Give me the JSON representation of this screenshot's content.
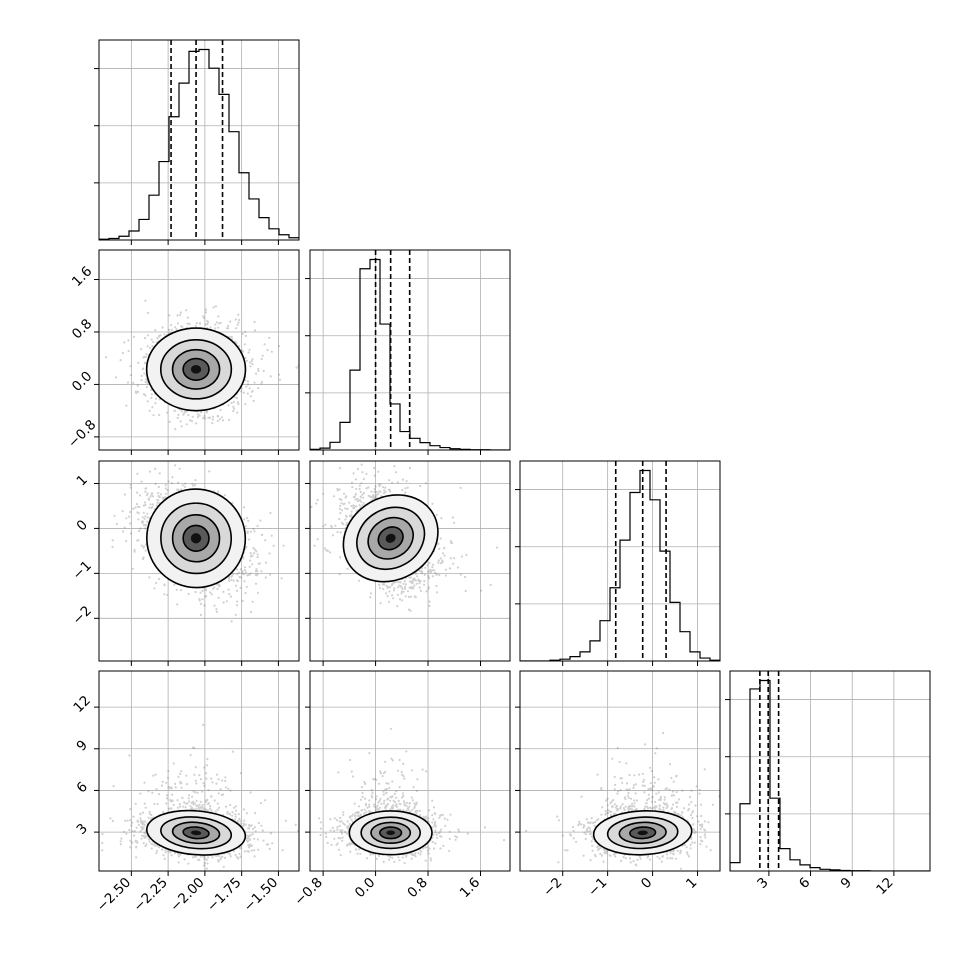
{
  "chart_data": {
    "type": "corner",
    "grid": true,
    "variables": [
      {
        "range": [
          -2.72,
          -1.36
        ],
        "ticks": [
          -2.5,
          -2.25,
          -2.0,
          -1.75,
          -1.5
        ],
        "tick_labels": [
          "−2.50",
          "−2.25",
          "−2.00",
          "−1.75",
          "−1.50"
        ],
        "median": -2.06,
        "q16": -2.23,
        "q84": -1.88
      },
      {
        "range": [
          -1.0,
          2.05
        ],
        "ticks": [
          -0.8,
          0.0,
          0.8,
          1.6
        ],
        "tick_labels": [
          "−0.8",
          "0.0",
          "0.8",
          "1.6"
        ],
        "median": 0.23,
        "q16": 0.0,
        "q84": 0.52
      },
      {
        "range": [
          -2.95,
          1.5
        ],
        "ticks": [
          -2,
          -1,
          0,
          1
        ],
        "tick_labels": [
          "−2",
          "−1",
          "0",
          "1"
        ],
        "median": -0.22,
        "q16": -0.82,
        "q84": 0.3
      },
      {
        "range": [
          0.2,
          14.6
        ],
        "ticks": [
          3,
          6,
          9,
          12
        ],
        "tick_labels": [
          "3",
          "6",
          "9",
          "12"
        ],
        "median": 2.95,
        "q16": 2.35,
        "q84": 3.7
      }
    ],
    "histograms": [
      {
        "edges_start": -2.72,
        "bin_width": 0.068,
        "counts": [
          2,
          4,
          10,
          24,
          55,
          120,
          210,
          330,
          420,
          505,
          510,
          460,
          390,
          290,
          180,
          110,
          60,
          30,
          14,
          6
        ]
      },
      {
        "edges_start": -1.0,
        "bin_width": 0.1525,
        "counts": [
          2,
          6,
          25,
          90,
          260,
          590,
          620,
          410,
          150,
          60,
          38,
          24,
          14,
          8,
          4,
          2,
          1,
          1,
          0,
          0
        ]
      },
      {
        "edges_start": -2.95,
        "bin_width": 0.2225,
        "counts": [
          0,
          0,
          0,
          2,
          5,
          12,
          25,
          55,
          110,
          200,
          330,
          460,
          520,
          440,
          300,
          160,
          80,
          25,
          8,
          2
        ]
      },
      {
        "edges_start": 0.2,
        "bin_width": 0.72,
        "counts": [
          30,
          240,
          650,
          680,
          260,
          80,
          40,
          22,
          12,
          6,
          4,
          2,
          1,
          1,
          0,
          0,
          0,
          0,
          0,
          0
        ]
      }
    ],
    "pairs": [
      {
        "x": 0,
        "y": 1,
        "mean": [
          -2.06,
          0.23
        ],
        "sd": [
          0.16,
          0.3
        ],
        "rho": 0.0
      },
      {
        "x": 0,
        "y": 2,
        "mean": [
          -2.06,
          -0.22
        ],
        "sd": [
          0.16,
          0.52
        ],
        "rho": -0.35
      },
      {
        "x": 1,
        "y": 2,
        "mean": [
          0.23,
          -0.22
        ],
        "sd": [
          0.3,
          0.52
        ],
        "rho": -0.3
      },
      {
        "x": 0,
        "y": 3,
        "mean": [
          -2.06,
          2.95
        ],
        "sd": [
          0.16,
          0.75
        ],
        "rho": -0.15
      },
      {
        "x": 1,
        "y": 3,
        "mean": [
          0.23,
          2.95
        ],
        "sd": [
          0.3,
          0.75
        ],
        "rho": 0.0
      },
      {
        "x": 2,
        "y": 3,
        "mean": [
          -0.22,
          2.95
        ],
        "sd": [
          0.52,
          0.75
        ],
        "rho": 0.08
      }
    ]
  }
}
